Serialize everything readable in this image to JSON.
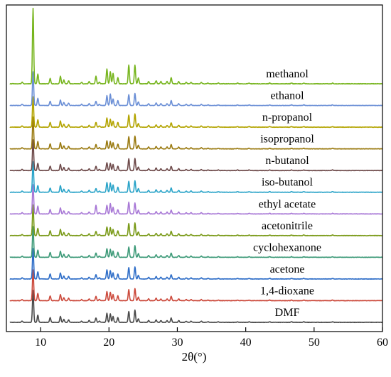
{
  "chart_data": {
    "type": "line",
    "title": "",
    "xlabel": "2θ(°)",
    "ylabel": "",
    "xlim": [
      5,
      60
    ],
    "xticks": [
      10,
      20,
      30,
      40,
      50,
      60
    ],
    "xtick_labels": [
      "10",
      "20",
      "30",
      "40",
      "50",
      "60"
    ],
    "y_axis_visible": false,
    "grid": false,
    "legend": "none",
    "stacked_offset_patterns": true,
    "peaks_2theta": [
      7.3,
      8.9,
      9.6,
      11.4,
      12.9,
      13.4,
      14.1,
      16.0,
      17.1,
      18.1,
      18.6,
      19.7,
      20.2,
      20.6,
      21.3,
      22.9,
      23.8,
      24.3,
      25.8,
      26.9,
      27.6,
      28.5,
      29.1,
      30.2,
      31.3,
      32.0,
      33.5,
      34.5,
      36.0,
      38.8,
      40.5,
      43.5,
      46.7,
      48.5,
      52.7
    ],
    "series": [
      {
        "name": "methanol",
        "color": "#77b51e",
        "values": [
          0.02,
          1.0,
          0.13,
          0.07,
          0.1,
          0.05,
          0.04,
          0.02,
          0.03,
          0.1,
          0.02,
          0.2,
          0.16,
          0.14,
          0.08,
          0.25,
          0.25,
          0.08,
          0.03,
          0.04,
          0.03,
          0.03,
          0.08,
          0.03,
          0.02,
          0.02,
          0.02,
          0.01,
          0.01,
          0.01,
          0.01,
          0.01,
          0.01,
          0.01,
          0.01
        ]
      },
      {
        "name": "ethanol",
        "color": "#6b8fd6",
        "values": [
          0.02,
          0.55,
          0.12,
          0.07,
          0.09,
          0.05,
          0.04,
          0.02,
          0.03,
          0.07,
          0.02,
          0.16,
          0.19,
          0.11,
          0.08,
          0.18,
          0.2,
          0.06,
          0.03,
          0.04,
          0.03,
          0.03,
          0.08,
          0.03,
          0.02,
          0.02,
          0.02,
          0.01,
          0.01,
          0.01,
          0.01,
          0.01,
          0.01,
          0.01,
          0.01
        ]
      },
      {
        "name": "n-propanol",
        "color": "#b3a400",
        "values": [
          0.02,
          0.5,
          0.12,
          0.08,
          0.1,
          0.05,
          0.04,
          0.02,
          0.03,
          0.08,
          0.02,
          0.15,
          0.13,
          0.1,
          0.08,
          0.2,
          0.22,
          0.06,
          0.03,
          0.04,
          0.03,
          0.03,
          0.07,
          0.03,
          0.02,
          0.02,
          0.02,
          0.01,
          0.01,
          0.01,
          0.01,
          0.01,
          0.01,
          0.01,
          0.01
        ]
      },
      {
        "name": "isopropanol",
        "color": "#9a7a10",
        "values": [
          0.02,
          0.52,
          0.12,
          0.08,
          0.1,
          0.05,
          0.04,
          0.02,
          0.03,
          0.07,
          0.02,
          0.13,
          0.12,
          0.1,
          0.08,
          0.2,
          0.21,
          0.06,
          0.03,
          0.04,
          0.03,
          0.03,
          0.07,
          0.03,
          0.02,
          0.02,
          0.02,
          0.01,
          0.01,
          0.01,
          0.01,
          0.01,
          0.01,
          0.01,
          0.01
        ]
      },
      {
        "name": "n-butanol",
        "color": "#6e4a4a",
        "values": [
          0.02,
          0.5,
          0.12,
          0.07,
          0.1,
          0.05,
          0.04,
          0.02,
          0.03,
          0.07,
          0.02,
          0.13,
          0.12,
          0.1,
          0.07,
          0.19,
          0.2,
          0.06,
          0.03,
          0.04,
          0.03,
          0.03,
          0.07,
          0.03,
          0.02,
          0.02,
          0.02,
          0.01,
          0.01,
          0.01,
          0.01,
          0.01,
          0.01,
          0.01,
          0.01
        ]
      },
      {
        "name": "iso-butanol",
        "color": "#29a3c8",
        "values": [
          0.02,
          0.5,
          0.11,
          0.07,
          0.11,
          0.05,
          0.04,
          0.02,
          0.03,
          0.06,
          0.02,
          0.16,
          0.15,
          0.12,
          0.08,
          0.18,
          0.19,
          0.06,
          0.03,
          0.04,
          0.03,
          0.03,
          0.07,
          0.03,
          0.02,
          0.02,
          0.02,
          0.01,
          0.01,
          0.01,
          0.01,
          0.01,
          0.01,
          0.01,
          0.01
        ]
      },
      {
        "name": "ethyl acetate",
        "color": "#a878d6",
        "values": [
          0.02,
          0.48,
          0.13,
          0.07,
          0.1,
          0.05,
          0.04,
          0.02,
          0.03,
          0.14,
          0.02,
          0.14,
          0.17,
          0.11,
          0.07,
          0.19,
          0.18,
          0.06,
          0.03,
          0.04,
          0.03,
          0.03,
          0.06,
          0.03,
          0.02,
          0.02,
          0.02,
          0.01,
          0.01,
          0.01,
          0.01,
          0.01,
          0.01,
          0.01,
          0.01
        ]
      },
      {
        "name": "acetonitrile",
        "color": "#7a9a18",
        "values": [
          0.02,
          0.5,
          0.12,
          0.08,
          0.1,
          0.05,
          0.04,
          0.02,
          0.03,
          0.07,
          0.02,
          0.14,
          0.13,
          0.1,
          0.08,
          0.2,
          0.21,
          0.06,
          0.03,
          0.04,
          0.03,
          0.03,
          0.07,
          0.03,
          0.02,
          0.02,
          0.02,
          0.01,
          0.01,
          0.01,
          0.01,
          0.01,
          0.01,
          0.01,
          0.01
        ]
      },
      {
        "name": "cyclohexanone",
        "color": "#3d9a78",
        "values": [
          0.02,
          0.5,
          0.12,
          0.08,
          0.1,
          0.05,
          0.04,
          0.02,
          0.03,
          0.07,
          0.02,
          0.14,
          0.13,
          0.1,
          0.08,
          0.17,
          0.19,
          0.06,
          0.03,
          0.04,
          0.03,
          0.03,
          0.07,
          0.03,
          0.02,
          0.02,
          0.02,
          0.01,
          0.01,
          0.01,
          0.01,
          0.01,
          0.01,
          0.01,
          0.01
        ]
      },
      {
        "name": "acetone",
        "color": "#2f6ec8",
        "values": [
          0.02,
          0.5,
          0.12,
          0.08,
          0.1,
          0.05,
          0.04,
          0.02,
          0.03,
          0.07,
          0.02,
          0.15,
          0.14,
          0.1,
          0.08,
          0.19,
          0.2,
          0.06,
          0.03,
          0.04,
          0.03,
          0.03,
          0.07,
          0.03,
          0.02,
          0.02,
          0.02,
          0.01,
          0.01,
          0.01,
          0.01,
          0.01,
          0.01,
          0.01,
          0.01
        ]
      },
      {
        "name": "1,4-dioxane",
        "color": "#cc4a3c",
        "values": [
          0.02,
          0.5,
          0.12,
          0.08,
          0.1,
          0.05,
          0.04,
          0.02,
          0.03,
          0.07,
          0.02,
          0.15,
          0.14,
          0.1,
          0.08,
          0.18,
          0.2,
          0.06,
          0.03,
          0.04,
          0.03,
          0.03,
          0.07,
          0.03,
          0.02,
          0.02,
          0.02,
          0.01,
          0.01,
          0.01,
          0.01,
          0.01,
          0.01,
          0.01,
          0.01
        ]
      },
      {
        "name": "DMF",
        "color": "#4a4a4a",
        "values": [
          0.02,
          0.52,
          0.12,
          0.08,
          0.1,
          0.05,
          0.04,
          0.02,
          0.03,
          0.07,
          0.02,
          0.15,
          0.14,
          0.1,
          0.08,
          0.18,
          0.2,
          0.06,
          0.03,
          0.04,
          0.03,
          0.03,
          0.07,
          0.03,
          0.02,
          0.02,
          0.02,
          0.01,
          0.01,
          0.01,
          0.01,
          0.01,
          0.01,
          0.01,
          0.01
        ]
      }
    ]
  }
}
